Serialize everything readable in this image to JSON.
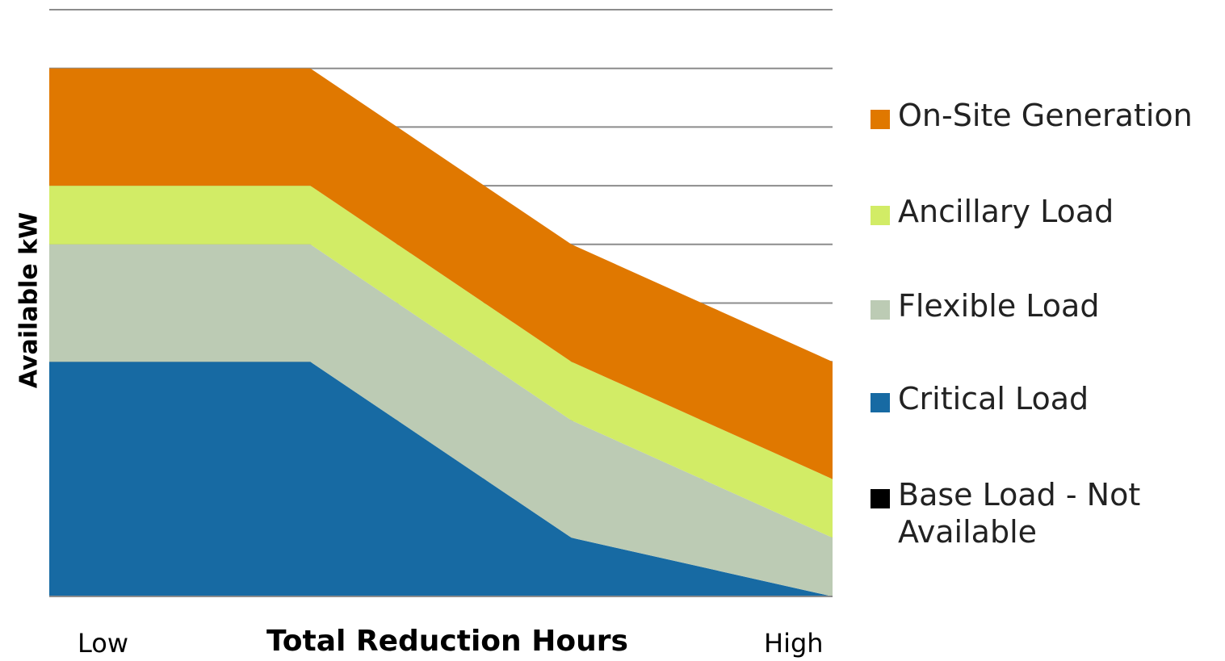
{
  "chart_data": {
    "type": "area",
    "stacked": true,
    "ylabel": "Available kW",
    "xlabel": "Total Reduction Hours",
    "x_tick_labels": {
      "low": "Low",
      "high": "High"
    },
    "x": [
      0,
      1,
      2,
      3
    ],
    "ylim": [
      0,
      10
    ],
    "grid": true,
    "legend_position": "right",
    "series": [
      {
        "name": "Base Load - Not Available",
        "color": "#000000",
        "values": [
          0,
          0,
          0,
          0
        ]
      },
      {
        "name": "Critical Load",
        "color": "#176aa3",
        "values": [
          4,
          4,
          1,
          0
        ]
      },
      {
        "name": "Flexible Load",
        "color": "#bccbb4",
        "values": [
          2,
          2,
          2,
          1
        ]
      },
      {
        "name": "Ancillary Load",
        "color": "#d2ec66",
        "values": [
          1,
          1,
          1,
          1
        ]
      },
      {
        "name": "On-Site Generation",
        "color": "#e07800",
        "values": [
          2,
          2,
          2,
          2
        ]
      }
    ]
  }
}
